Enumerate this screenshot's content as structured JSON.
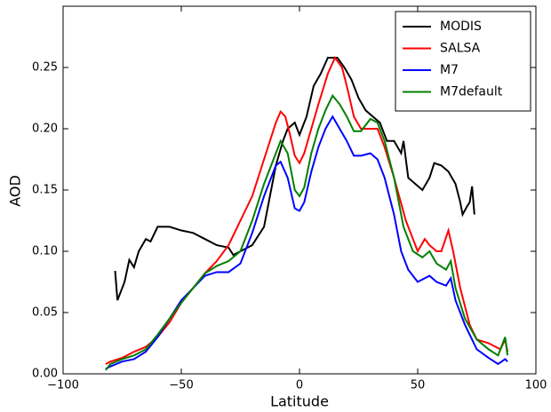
{
  "chart_data": {
    "type": "line",
    "x_label": "Latitude",
    "y_label": "AOD",
    "xlim": [
      -100,
      100
    ],
    "ylim": [
      0,
      0.3
    ],
    "xticks": [
      {
        "value": -100,
        "label": "−100"
      },
      {
        "value": -50,
        "label": "−50"
      },
      {
        "value": 0,
        "label": "0"
      },
      {
        "value": 50,
        "label": "50"
      },
      {
        "value": 100,
        "label": "100"
      }
    ],
    "yticks": [
      {
        "value": 0,
        "label": "0.00"
      },
      {
        "value": 0.05,
        "label": "0.05"
      },
      {
        "value": 0.1,
        "label": "0.10"
      },
      {
        "value": 0.15,
        "label": "0.15"
      },
      {
        "value": 0.2,
        "label": "0.20"
      },
      {
        "value": 0.25,
        "label": "0.25"
      }
    ],
    "legend": "upper right",
    "series": [
      {
        "name": "MODIS",
        "color": "#000000",
        "x": [
          -78,
          -77,
          -74,
          -72,
          -70,
          -68,
          -65,
          -63,
          -60,
          -55,
          -50,
          -45,
          -40,
          -35,
          -30,
          -28,
          -25,
          -20,
          -15,
          -12,
          -10,
          -7,
          -5,
          -2,
          0,
          3,
          6,
          9,
          12,
          16,
          19,
          22,
          25,
          28,
          31,
          34,
          37,
          40,
          43,
          44,
          46,
          49,
          52,
          55,
          57,
          60,
          63,
          66,
          68,
          69,
          71,
          72,
          73,
          74
        ],
        "values": [
          0.084,
          0.06,
          0.075,
          0.093,
          0.087,
          0.1,
          0.11,
          0.108,
          0.12,
          0.12,
          0.117,
          0.115,
          0.11,
          0.105,
          0.103,
          0.097,
          0.1,
          0.105,
          0.12,
          0.15,
          0.17,
          0.19,
          0.2,
          0.205,
          0.195,
          0.21,
          0.235,
          0.245,
          0.258,
          0.258,
          0.25,
          0.24,
          0.225,
          0.215,
          0.21,
          0.205,
          0.19,
          0.19,
          0.18,
          0.19,
          0.16,
          0.155,
          0.15,
          0.16,
          0.172,
          0.17,
          0.165,
          0.155,
          0.14,
          0.13,
          0.137,
          0.14,
          0.153,
          0.13
        ]
      },
      {
        "name": "SALSA",
        "color": "#ff0000",
        "x": [
          -82,
          -80,
          -75,
          -70,
          -65,
          -60,
          -55,
          -50,
          -45,
          -40,
          -35,
          -30,
          -25,
          -20,
          -15,
          -10,
          -8,
          -6,
          -4,
          -2,
          0,
          2,
          5,
          8,
          12,
          15,
          18,
          20,
          23,
          26,
          30,
          33,
          36,
          40,
          45,
          50,
          53,
          55,
          58,
          60,
          63,
          65,
          68,
          72,
          75,
          80,
          85,
          87,
          88
        ],
        "values": [
          0.008,
          0.01,
          0.013,
          0.018,
          0.022,
          0.03,
          0.042,
          0.058,
          0.07,
          0.082,
          0.092,
          0.105,
          0.125,
          0.145,
          0.175,
          0.205,
          0.214,
          0.21,
          0.195,
          0.178,
          0.172,
          0.18,
          0.2,
          0.22,
          0.245,
          0.258,
          0.25,
          0.235,
          0.21,
          0.2,
          0.2,
          0.2,
          0.185,
          0.16,
          0.125,
          0.1,
          0.11,
          0.105,
          0.1,
          0.1,
          0.117,
          0.1,
          0.07,
          0.04,
          0.028,
          0.025,
          0.02,
          0.028,
          0.018
        ]
      },
      {
        "name": "M7",
        "color": "#0000ff",
        "x": [
          -82,
          -80,
          -75,
          -70,
          -65,
          -60,
          -55,
          -50,
          -45,
          -40,
          -35,
          -30,
          -25,
          -20,
          -15,
          -10,
          -8,
          -5,
          -2,
          0,
          2,
          5,
          8,
          11,
          14,
          17,
          20,
          23,
          26,
          30,
          33,
          36,
          40,
          43,
          46,
          50,
          55,
          58,
          62,
          64,
          66,
          70,
          75,
          80,
          84,
          87,
          88
        ],
        "values": [
          0.004,
          0.006,
          0.01,
          0.012,
          0.018,
          0.03,
          0.045,
          0.06,
          0.07,
          0.08,
          0.083,
          0.083,
          0.09,
          0.115,
          0.145,
          0.17,
          0.173,
          0.16,
          0.135,
          0.133,
          0.14,
          0.165,
          0.185,
          0.2,
          0.21,
          0.2,
          0.19,
          0.178,
          0.178,
          0.18,
          0.175,
          0.16,
          0.13,
          0.1,
          0.085,
          0.075,
          0.08,
          0.075,
          0.072,
          0.078,
          0.06,
          0.04,
          0.02,
          0.013,
          0.008,
          0.012,
          0.01
        ]
      },
      {
        "name": "M7default",
        "color": "#008000",
        "x": [
          -82,
          -80,
          -75,
          -70,
          -65,
          -60,
          -55,
          -50,
          -45,
          -40,
          -35,
          -30,
          -25,
          -20,
          -15,
          -10,
          -8,
          -5,
          -2,
          0,
          2,
          5,
          8,
          11,
          14,
          17,
          20,
          23,
          26,
          30,
          33,
          36,
          40,
          44,
          48,
          52,
          55,
          58,
          62,
          64,
          66,
          70,
          75,
          80,
          84,
          87,
          88
        ],
        "values": [
          0.003,
          0.008,
          0.012,
          0.015,
          0.02,
          0.032,
          0.045,
          0.058,
          0.07,
          0.082,
          0.088,
          0.092,
          0.1,
          0.125,
          0.155,
          0.18,
          0.19,
          0.18,
          0.15,
          0.145,
          0.152,
          0.18,
          0.2,
          0.215,
          0.227,
          0.22,
          0.21,
          0.198,
          0.198,
          0.208,
          0.205,
          0.19,
          0.16,
          0.12,
          0.1,
          0.095,
          0.1,
          0.09,
          0.085,
          0.092,
          0.07,
          0.045,
          0.028,
          0.02,
          0.015,
          0.03,
          0.015
        ]
      }
    ]
  }
}
